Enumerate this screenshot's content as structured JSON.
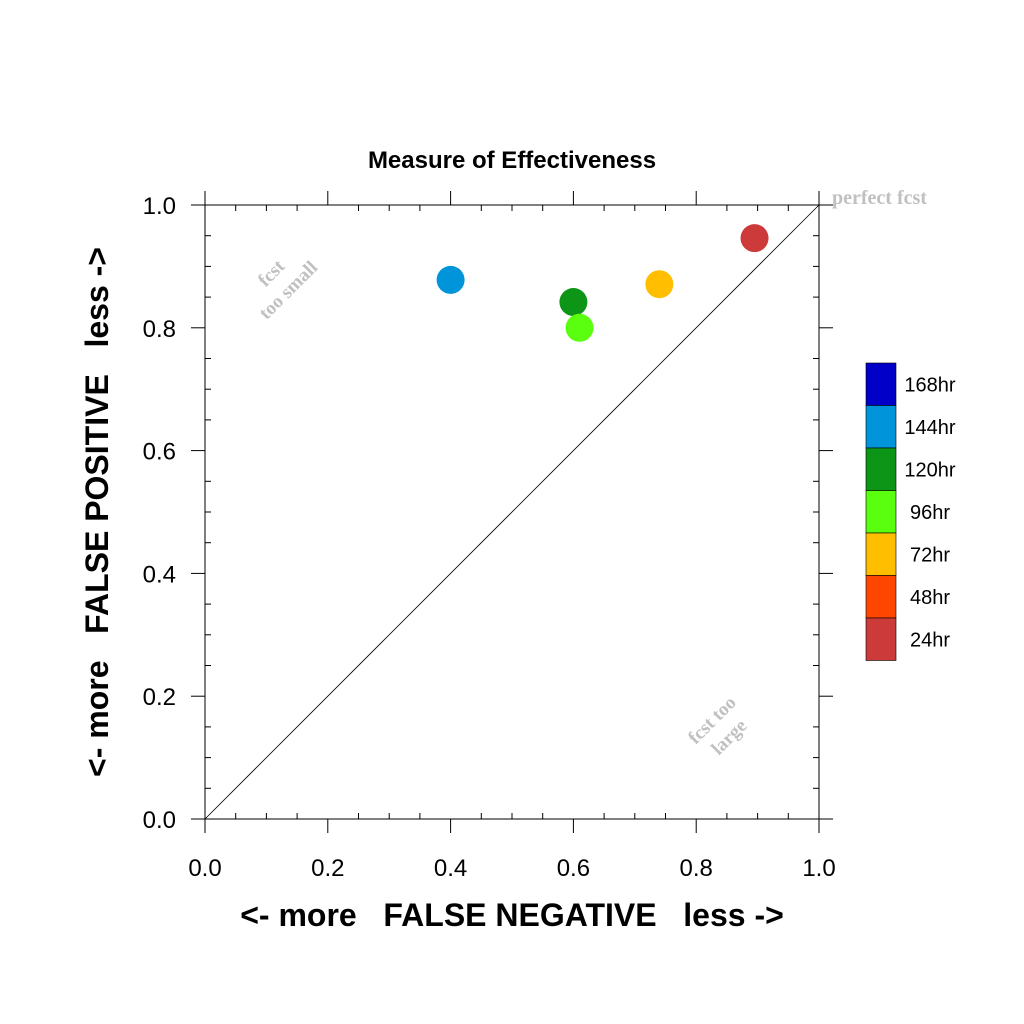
{
  "chart_data": {
    "type": "scatter",
    "title": "Measure of Effectiveness",
    "xlabel": "<- more   FALSE NEGATIVE   less ->",
    "ylabel": "<- more   FALSE POSITIVE   less ->",
    "xlim": [
      0.0,
      1.0
    ],
    "ylim": [
      0.0,
      1.0
    ],
    "xticks": [
      "0.0",
      "0.2",
      "0.4",
      "0.6",
      "0.8",
      "1.0"
    ],
    "yticks": [
      "0.0",
      "0.2",
      "0.4",
      "0.6",
      "0.8",
      "1.0"
    ],
    "grid": false,
    "reference_line": {
      "from": [
        0.0,
        0.0
      ],
      "to": [
        1.0,
        1.0
      ]
    },
    "annotations": {
      "perfect": "perfect fcst",
      "too_small_1": "fcst",
      "too_small_2": "too small",
      "too_large_1": "fcst too",
      "too_large_2": "large"
    },
    "points": [
      {
        "label": "144hr",
        "x": 0.4,
        "y": 0.878,
        "color": "#0095da"
      },
      {
        "label": "120hr",
        "x": 0.6,
        "y": 0.842,
        "color": "#0d9518"
      },
      {
        "label": "96hr",
        "x": 0.61,
        "y": 0.8,
        "color": "#59ff0e"
      },
      {
        "label": "72hr",
        "x": 0.74,
        "y": 0.871,
        "color": "#ffbf00"
      },
      {
        "label": "24hr",
        "x": 0.895,
        "y": 0.946,
        "color": "#cc3a3a"
      }
    ],
    "legend": {
      "placement": "right",
      "entries": [
        {
          "label": "168hr",
          "color": "#0000c8"
        },
        {
          "label": "144hr",
          "color": "#0095da"
        },
        {
          "label": "120hr",
          "color": "#0d9518"
        },
        {
          "label": "96hr",
          "color": "#59ff0e"
        },
        {
          "label": "72hr",
          "color": "#ffbf00"
        },
        {
          "label": "48hr",
          "color": "#ff4600"
        },
        {
          "label": "24hr",
          "color": "#cc3a3a"
        }
      ]
    }
  }
}
